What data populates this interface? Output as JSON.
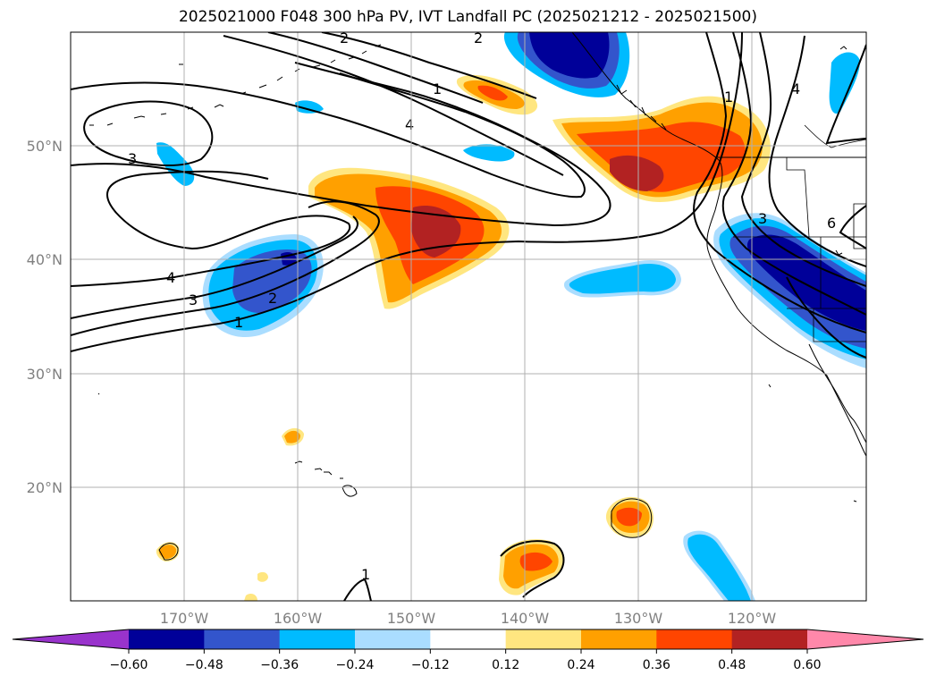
{
  "title": "2025021000 F048 300 hPa PV, IVT Landfall PC (2025021212 - 2025021500)",
  "lat_labels": [
    "50°N",
    "40°N",
    "30°N",
    "20°N"
  ],
  "lon_labels": [
    "170°W",
    "160°W",
    "150°W",
    "140°W",
    "130°W",
    "120°W"
  ],
  "colorbar": {
    "ticks": [
      "−0.60",
      "−0.48",
      "−0.36",
      "−0.24",
      "−0.12",
      "0.12",
      "0.24",
      "0.36",
      "0.48",
      "0.60"
    ],
    "colors": [
      "#9933cc",
      "#000099",
      "#3355cc",
      "#00bbff",
      "#aaddff",
      "#ffffff",
      "#ffe680",
      "#ffa000",
      "#ff4500",
      "#b22222",
      "#ff88aa"
    ]
  },
  "pv_contour_labels": [
    "1",
    "2",
    "3",
    "4",
    "1",
    "4",
    "3",
    "4",
    "1",
    "2",
    "3",
    "6",
    "2",
    "1"
  ]
}
